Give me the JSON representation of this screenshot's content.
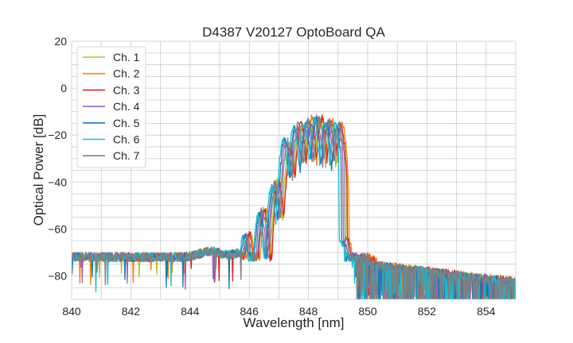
{
  "chart_data": {
    "type": "line",
    "title": "D4387 V20127 OptoBoard QA",
    "xlabel": "Wavelength [nm]",
    "ylabel": "Optical Power [dB]",
    "xlim": [
      840,
      855
    ],
    "ylim": [
      -90,
      20
    ],
    "xticks": [
      840,
      842,
      844,
      846,
      848,
      850,
      852,
      854
    ],
    "yticks": [
      -80,
      -60,
      -40,
      -20,
      0,
      20
    ],
    "xtick_labels": [
      "840",
      "842",
      "844",
      "846",
      "848",
      "850",
      "852",
      "854"
    ],
    "ytick_labels": [
      "−80",
      "−60",
      "−40",
      "−20",
      "0",
      "20"
    ],
    "grid": true,
    "legend_position": "top-left",
    "noise_floor_db": -72,
    "series": [
      {
        "name": "Ch. 1",
        "color": "#bcbd22",
        "shift_nm": 0.05,
        "peaks": [
          [
            846.0,
            -62
          ],
          [
            846.5,
            -52
          ],
          [
            846.95,
            -40
          ],
          [
            847.35,
            -25
          ],
          [
            847.7,
            -16
          ],
          [
            848.05,
            -14
          ],
          [
            848.4,
            -14
          ],
          [
            848.75,
            -15
          ],
          [
            849.1,
            -17
          ]
        ]
      },
      {
        "name": "Ch. 2",
        "color": "#ff7f0e",
        "shift_nm": 0.15,
        "peaks": [
          [
            846.05,
            -63
          ],
          [
            846.55,
            -53
          ],
          [
            847.0,
            -40
          ],
          [
            847.4,
            -24
          ],
          [
            847.75,
            -15
          ],
          [
            848.1,
            -13
          ],
          [
            848.45,
            -14
          ],
          [
            848.8,
            -14
          ],
          [
            849.15,
            -16
          ]
        ]
      },
      {
        "name": "Ch. 3",
        "color": "#d62728",
        "shift_nm": 0.12,
        "peaks": [
          [
            846.0,
            -62
          ],
          [
            846.5,
            -52
          ],
          [
            847.0,
            -40
          ],
          [
            847.4,
            -26
          ],
          [
            847.75,
            -15
          ],
          [
            848.1,
            -14
          ],
          [
            848.45,
            -13
          ],
          [
            848.8,
            -14
          ],
          [
            849.1,
            -16
          ]
        ]
      },
      {
        "name": "Ch. 4",
        "color": "#9467bd",
        "shift_nm": -0.05,
        "peaks": [
          [
            845.9,
            -63
          ],
          [
            846.4,
            -53
          ],
          [
            846.85,
            -41
          ],
          [
            847.25,
            -23
          ],
          [
            847.6,
            -16
          ],
          [
            847.95,
            -14
          ],
          [
            848.3,
            -13
          ],
          [
            848.65,
            -15
          ],
          [
            849.0,
            -15
          ]
        ]
      },
      {
        "name": "Ch. 5",
        "color": "#1f77b4",
        "shift_nm": -0.1,
        "peaks": [
          [
            845.85,
            -63
          ],
          [
            846.35,
            -53
          ],
          [
            846.8,
            -42
          ],
          [
            847.2,
            -22
          ],
          [
            847.55,
            -17
          ],
          [
            847.9,
            -15
          ],
          [
            848.25,
            -14
          ],
          [
            848.6,
            -15
          ],
          [
            848.95,
            -17
          ]
        ]
      },
      {
        "name": "Ch. 6",
        "color": "#17becf",
        "shift_nm": -0.15,
        "peaks": [
          [
            845.8,
            -63
          ],
          [
            846.3,
            -54
          ],
          [
            846.75,
            -43
          ],
          [
            847.15,
            -22
          ],
          [
            847.5,
            -16
          ],
          [
            847.85,
            -15
          ],
          [
            848.2,
            -14
          ],
          [
            848.55,
            -15
          ],
          [
            848.9,
            -16
          ]
        ]
      },
      {
        "name": "Ch. 7",
        "color": "#7f7f7f",
        "shift_nm": 0.0,
        "peaks": [
          [
            845.95,
            -63
          ],
          [
            846.45,
            -53
          ],
          [
            846.9,
            -41
          ],
          [
            847.3,
            -23
          ],
          [
            847.65,
            -16
          ],
          [
            848.0,
            -14
          ],
          [
            848.35,
            -13
          ],
          [
            848.7,
            -14
          ],
          [
            849.05,
            -15
          ]
        ]
      }
    ]
  }
}
